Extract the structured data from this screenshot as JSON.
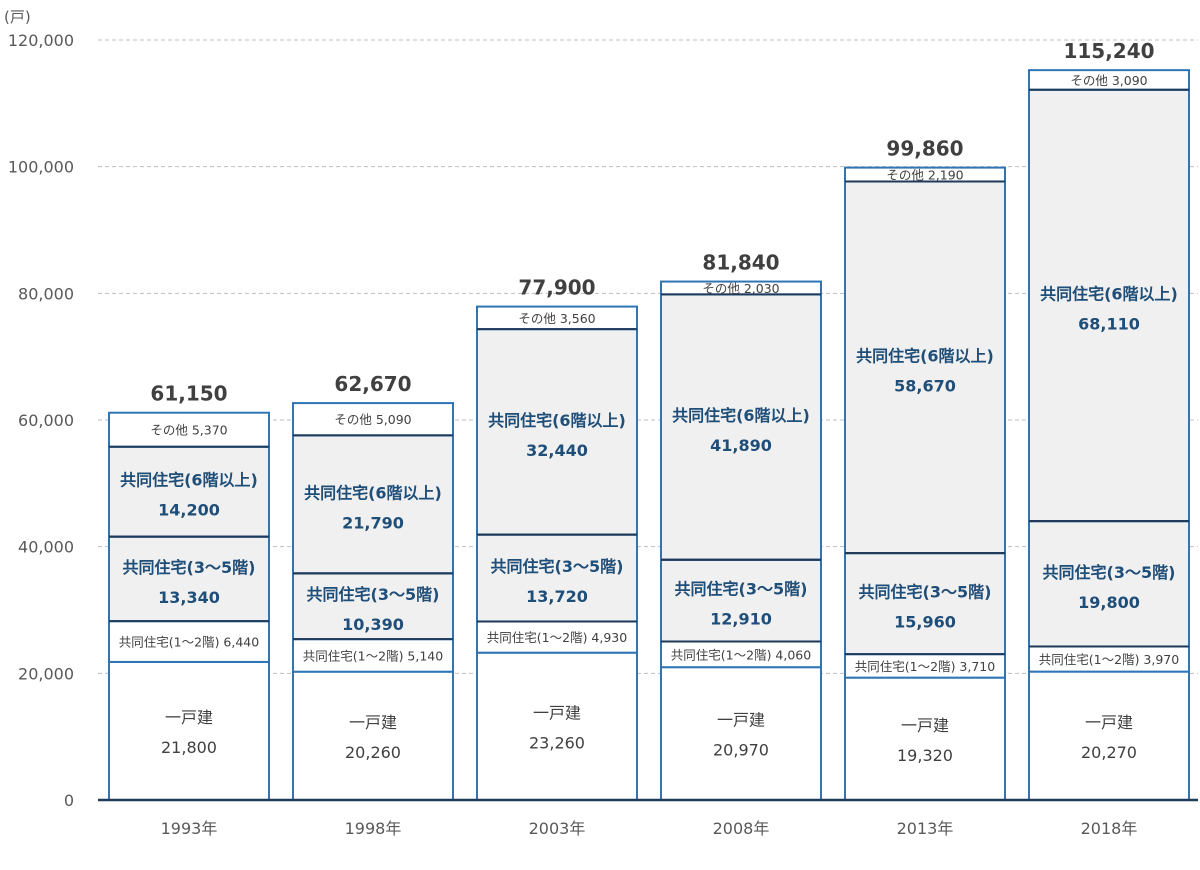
{
  "chart_data": {
    "type": "bar",
    "stacked": true,
    "unit_label": "(戸)",
    "ylim": [
      0,
      120000
    ],
    "yticks": [
      "0",
      "20,000",
      "40,000",
      "60,000",
      "80,000",
      "100,000",
      "120,000"
    ],
    "categories": [
      "1993年",
      "1998年",
      "2003年",
      "2008年",
      "2013年",
      "2018年"
    ],
    "series": [
      {
        "name": "一戸建",
        "values": [
          21800,
          20260,
          23260,
          20970,
          19320,
          20270
        ],
        "value_labels": [
          "21,800",
          "20,260",
          "23,260",
          "20,970",
          "19,320",
          "20,270"
        ]
      },
      {
        "name": "共同住宅(1～2階)",
        "values": [
          6440,
          5140,
          4930,
          4060,
          3710,
          3970
        ],
        "value_labels": [
          "6,440",
          "5,140",
          "4,930",
          "4,060",
          "3,710",
          "3,970"
        ]
      },
      {
        "name": "共同住宅(3～5階)",
        "values": [
          13340,
          10390,
          13720,
          12910,
          15960,
          19800
        ],
        "value_labels": [
          "13,340",
          "10,390",
          "13,720",
          "12,910",
          "15,960",
          "19,800"
        ]
      },
      {
        "name": "共同住宅(6階以上)",
        "values": [
          14200,
          21790,
          32440,
          41890,
          58670,
          68110
        ],
        "value_labels": [
          "14,200",
          "21,790",
          "32,440",
          "41,890",
          "58,670",
          "68,110"
        ]
      },
      {
        "name": "その他",
        "values": [
          5370,
          5090,
          3560,
          2030,
          2190,
          3090
        ],
        "value_labels": [
          "5,370",
          "5,090",
          "3,560",
          "2,030",
          "2,190",
          "3,090"
        ]
      }
    ],
    "totals": [
      61150,
      62670,
      77900,
      81840,
      99860,
      115240
    ],
    "total_labels": [
      "61,150",
      "62,670",
      "77,900",
      "81,840",
      "99,860",
      "115,240"
    ],
    "grid": true,
    "colors": {
      "border": "#2e75b6",
      "border_dark": "#1f3a5a",
      "fill_light": "#ffffff",
      "fill_grey": "#f0f0f0",
      "grid": "#bfbfbf",
      "axis": "#1f3a5a"
    }
  }
}
